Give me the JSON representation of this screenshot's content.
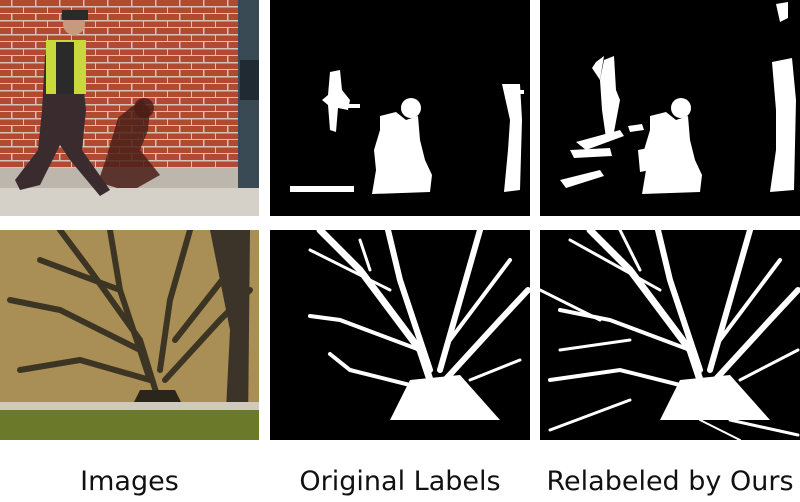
{
  "captions": {
    "images": "Images",
    "original_labels": "Original Labels",
    "relabeled": "Relabeled by Ours"
  },
  "colors": {
    "brick": "#b24a32",
    "mortar": "#d7c3b6",
    "mask_bg": "#000000",
    "mask_fg": "#ffffff",
    "grass": "#6a7a2a",
    "wall_tan": "#a98f55"
  }
}
